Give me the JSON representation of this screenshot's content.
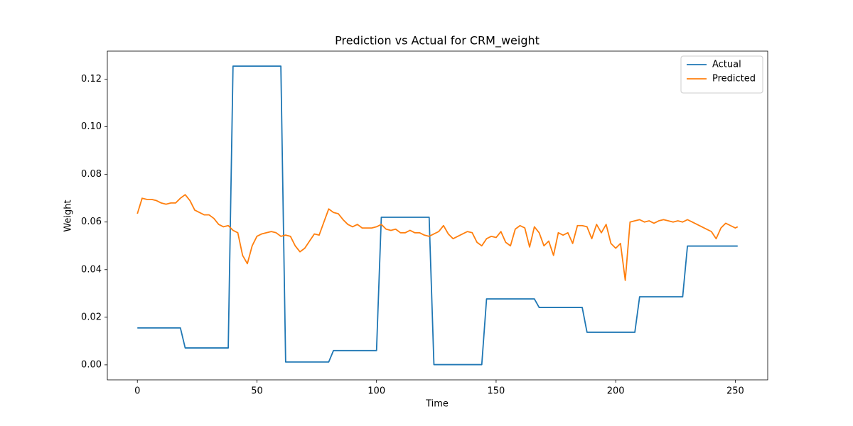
{
  "chart_data": {
    "type": "line",
    "title": "Prediction vs Actual for CRM_weight",
    "xlabel": "Time",
    "ylabel": "Weight",
    "x": [
      0,
      2,
      4,
      6,
      8,
      10,
      12,
      14,
      16,
      18,
      20,
      22,
      24,
      26,
      28,
      30,
      32,
      34,
      36,
      38,
      40,
      42,
      44,
      46,
      48,
      50,
      52,
      54,
      56,
      58,
      60,
      62,
      64,
      66,
      68,
      70,
      72,
      74,
      76,
      78,
      80,
      82,
      84,
      86,
      88,
      90,
      92,
      94,
      96,
      98,
      100,
      102,
      104,
      106,
      108,
      110,
      112,
      114,
      116,
      118,
      120,
      122,
      124,
      126,
      128,
      130,
      132,
      134,
      136,
      138,
      140,
      142,
      144,
      146,
      148,
      150,
      152,
      154,
      156,
      158,
      160,
      162,
      164,
      166,
      168,
      170,
      172,
      174,
      176,
      178,
      180,
      182,
      184,
      186,
      188,
      190,
      192,
      194,
      196,
      198,
      200,
      202,
      204,
      206,
      208,
      210,
      212,
      214,
      216,
      218,
      220,
      222,
      224,
      226,
      228,
      230,
      232,
      234,
      236,
      238,
      240,
      242,
      244,
      246,
      248,
      250,
      251
    ],
    "series": [
      {
        "name": "Actual",
        "color": "#1f77b4",
        "values": [
          0.0155,
          0.0155,
          0.0155,
          0.0155,
          0.0155,
          0.0155,
          0.0155,
          0.0155,
          0.0155,
          0.0155,
          0.0071,
          0.0071,
          0.0071,
          0.0071,
          0.0071,
          0.0071,
          0.0071,
          0.0071,
          0.0071,
          0.0071,
          0.1255,
          0.1255,
          0.1255,
          0.1255,
          0.1255,
          0.1255,
          0.1255,
          0.1255,
          0.1255,
          0.1255,
          0.1255,
          0.0012,
          0.0012,
          0.0012,
          0.0012,
          0.0012,
          0.0012,
          0.0012,
          0.0012,
          0.0012,
          0.0012,
          0.006,
          0.006,
          0.006,
          0.006,
          0.006,
          0.006,
          0.006,
          0.006,
          0.006,
          0.006,
          0.062,
          0.062,
          0.062,
          0.062,
          0.062,
          0.062,
          0.062,
          0.062,
          0.062,
          0.062,
          0.062,
          0.0001,
          0.0001,
          0.0001,
          0.0001,
          0.0001,
          0.0001,
          0.0001,
          0.0001,
          0.0001,
          0.0001,
          0.0001,
          0.0277,
          0.0277,
          0.0277,
          0.0277,
          0.0277,
          0.0277,
          0.0277,
          0.0277,
          0.0277,
          0.0277,
          0.0277,
          0.0241,
          0.0241,
          0.0241,
          0.0241,
          0.0241,
          0.0241,
          0.0241,
          0.0241,
          0.0241,
          0.0241,
          0.0137,
          0.0137,
          0.0137,
          0.0137,
          0.0137,
          0.0137,
          0.0137,
          0.0137,
          0.0137,
          0.0137,
          0.0137,
          0.0286,
          0.0286,
          0.0286,
          0.0286,
          0.0286,
          0.0286,
          0.0286,
          0.0286,
          0.0286,
          0.0286,
          0.0499,
          0.0499,
          0.0499,
          0.0499,
          0.0499,
          0.0499,
          0.0499,
          0.0499,
          0.0499,
          0.0499,
          0.0499,
          0.0499
        ]
      },
      {
        "name": "Predicted",
        "color": "#ff7f0e",
        "values": [
          0.0635,
          0.07,
          0.0695,
          0.0695,
          0.069,
          0.068,
          0.0675,
          0.068,
          0.068,
          0.07,
          0.0715,
          0.069,
          0.065,
          0.064,
          0.063,
          0.063,
          0.0615,
          0.059,
          0.058,
          0.0585,
          0.0565,
          0.0555,
          0.046,
          0.0425,
          0.05,
          0.054,
          0.055,
          0.0555,
          0.056,
          0.0555,
          0.054,
          0.0545,
          0.054,
          0.05,
          0.0475,
          0.049,
          0.052,
          0.055,
          0.0545,
          0.06,
          0.0655,
          0.064,
          0.0635,
          0.061,
          0.059,
          0.058,
          0.059,
          0.0575,
          0.0575,
          0.0575,
          0.058,
          0.059,
          0.057,
          0.0565,
          0.057,
          0.0555,
          0.0555,
          0.0565,
          0.0555,
          0.0555,
          0.0545,
          0.054,
          0.055,
          0.056,
          0.0585,
          0.055,
          0.053,
          0.054,
          0.055,
          0.056,
          0.0555,
          0.0515,
          0.05,
          0.053,
          0.054,
          0.0535,
          0.056,
          0.0515,
          0.05,
          0.057,
          0.0585,
          0.0575,
          0.0495,
          0.058,
          0.0555,
          0.05,
          0.052,
          0.046,
          0.0555,
          0.0545,
          0.0555,
          0.051,
          0.0585,
          0.0585,
          0.058,
          0.053,
          0.059,
          0.0555,
          0.059,
          0.051,
          0.049,
          0.051,
          0.0355,
          0.06,
          0.0605,
          0.061,
          0.06,
          0.0605,
          0.0595,
          0.0605,
          0.061,
          0.0605,
          0.06,
          0.0605,
          0.06,
          0.061,
          0.06,
          0.059,
          0.058,
          0.057,
          0.056,
          0.053,
          0.0575,
          0.0595,
          0.0585,
          0.0575,
          0.058
        ]
      }
    ],
    "xlim": [
      -12.55,
      263.55
    ],
    "ylim": [
      -0.0063,
      0.1318
    ],
    "xticks": [
      0,
      50,
      100,
      150,
      200,
      250
    ],
    "yticks": [
      {
        "value": 0,
        "label": "0.00"
      },
      {
        "value": 0.02,
        "label": "0.02"
      },
      {
        "value": 0.04,
        "label": "0.04"
      },
      {
        "value": 0.06,
        "label": "0.06"
      },
      {
        "value": 0.08,
        "label": "0.08"
      },
      {
        "value": 0.1,
        "label": "0.10"
      },
      {
        "value": 0.12,
        "label": "0.12"
      }
    ],
    "legend": "upper right"
  }
}
